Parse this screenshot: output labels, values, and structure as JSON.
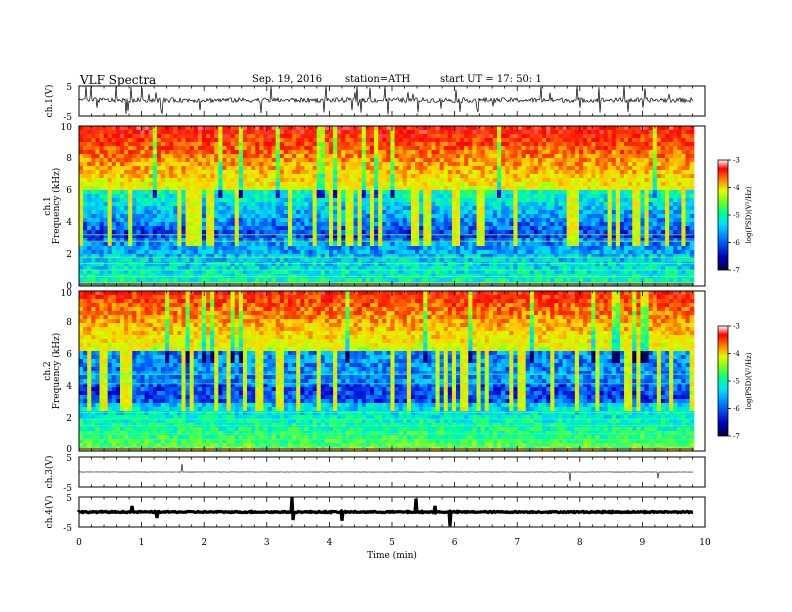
{
  "header": {
    "title": "VLF  Spectra",
    "date": "Sep. 19, 2016",
    "station": "station=ATH",
    "start": "start  UT  =    17: 50: 1"
  },
  "chart_data": [
    {
      "type": "line",
      "panel": "ch1-waveform",
      "ylabel": "ch.1(V)",
      "ylim": [
        -5,
        5
      ],
      "yticks": [
        "5",
        "-5"
      ],
      "baseline": 0.3,
      "xlim": [
        0,
        10
      ],
      "color": "#000000"
    },
    {
      "type": "heatmap",
      "panel": "ch1-spectrogram",
      "ylabel": "ch.1\nFrequency  (kHz)",
      "xlim": [
        0,
        10
      ],
      "data_end_min": 9.82,
      "ylim": [
        0,
        10
      ],
      "yticks": [
        "0",
        "2",
        "4",
        "6",
        "8",
        "10"
      ],
      "colorbar": {
        "label": "log(PSD)(V²/Hz)",
        "range": [
          -7,
          -3
        ],
        "ticks": [
          "-3",
          "-4",
          "-5",
          "-6",
          "-7"
        ]
      }
    },
    {
      "type": "heatmap",
      "panel": "ch2-spectrogram",
      "ylabel": "ch.2\nFrequency  (kHz)",
      "xlim": [
        0,
        10
      ],
      "data_end_min": 9.82,
      "ylim": [
        0,
        10
      ],
      "yticks": [
        "0",
        "2",
        "4",
        "6",
        "8",
        "10"
      ],
      "colorbar": {
        "label": "log(PSD)(V²/Hz)",
        "range": [
          -7,
          -3
        ],
        "ticks": [
          "-3",
          "-4",
          "-5",
          "-6",
          "-7"
        ]
      }
    },
    {
      "type": "line",
      "panel": "ch3-waveform",
      "ylabel": "ch.3(V)",
      "ylim": [
        -5,
        5
      ],
      "yticks": [
        "5",
        "-5"
      ],
      "baseline": 0,
      "xlim": [
        0,
        10
      ],
      "color": "#000000"
    },
    {
      "type": "line",
      "panel": "ch4-waveform",
      "ylabel": "ch.4(V)",
      "ylim": [
        -5,
        5
      ],
      "yticks": [
        "5",
        "-5"
      ],
      "baseline": 0,
      "xlim": [
        0,
        10
      ],
      "color": "#000000"
    }
  ],
  "xaxis": {
    "label": "Time  (min)",
    "ticks": [
      "0",
      "1",
      "2",
      "3",
      "4",
      "5",
      "6",
      "7",
      "8",
      "9",
      "10"
    ],
    "range": [
      0,
      10
    ]
  },
  "colormap": [
    "#000060",
    "#0000d0",
    "#0060ff",
    "#00d0ff",
    "#00ffa0",
    "#60ff30",
    "#d0ff00",
    "#ffd000",
    "#ff5000",
    "#ff0000",
    "#ffb0b0"
  ]
}
